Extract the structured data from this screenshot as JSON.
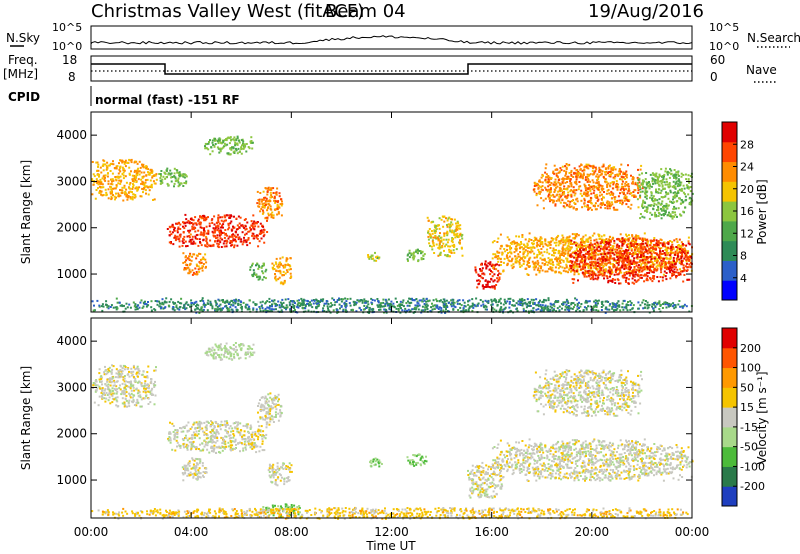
{
  "header": {
    "title": "Christmas Valley West (fitACF)",
    "beam": "Beam 04",
    "date": "19/Aug/2016"
  },
  "top_panels": {
    "nsky_label": "N.Sky",
    "nsearch_label": "N.Search",
    "nsky_ticks": [
      "10^5",
      "10^0"
    ],
    "nsearch_ticks": [
      "10^5",
      "10^0"
    ],
    "freq_label_1": "Freq.",
    "freq_label_2": "[MHz]",
    "freq_ticks": [
      "18",
      "8"
    ],
    "nave_label": "Nave",
    "nave_ticks": [
      "60",
      "0"
    ],
    "cpid_label": "CPID",
    "cpid_text": "normal (fast) -151 RF"
  },
  "x_axis": {
    "label": "Time UT",
    "ticks": [
      "00:00",
      "04:00",
      "08:00",
      "12:00",
      "16:00",
      "20:00",
      "00:00"
    ]
  },
  "power_panel": {
    "ylabel": "Slant Range [km]",
    "yticks": [
      "1000",
      "2000",
      "3000",
      "4000"
    ],
    "colorbar_label": "Power [dB]",
    "colorbar_ticks": [
      "28",
      "24",
      "20",
      "16",
      "12",
      "8",
      "4"
    ],
    "colors": [
      "#0000ff",
      "#2b5fc9",
      "#2e8b57",
      "#4ea84a",
      "#8cc63f",
      "#f5c400",
      "#ff8c00",
      "#ff4500",
      "#e00000"
    ]
  },
  "velocity_panel": {
    "ylabel": "Slant Range [km]",
    "yticks": [
      "1000",
      "2000",
      "3000",
      "4000"
    ],
    "colorbar_label": "Velocity [m s⁻¹]",
    "colorbar_ticks": [
      "200",
      "100",
      "50",
      "15",
      "-15",
      "-50",
      "-100",
      "-200"
    ],
    "colors": [
      "#1f3fbf",
      "#2a7a4a",
      "#4cbb3a",
      "#a8d98a",
      "#c8c8c0",
      "#f5c400",
      "#ff9900",
      "#ff5500",
      "#e00000"
    ]
  },
  "chart_data": [
    {
      "type": "heatmap",
      "title": "Power",
      "xlabel": "Time UT",
      "ylabel": "Slant Range [km]",
      "xlim": [
        0,
        24
      ],
      "ylim": [
        180,
        4500
      ],
      "zlabel": "Power [dB]",
      "zlim": [
        0,
        30
      ],
      "regions": [
        {
          "t0": 0.0,
          "t1": 2.6,
          "r0": 2600,
          "r1": 3500,
          "z": 20
        },
        {
          "t0": 2.6,
          "t1": 3.8,
          "r0": 2900,
          "r1": 3300,
          "z": 14
        },
        {
          "t0": 3.0,
          "t1": 7.0,
          "r0": 1600,
          "r1": 2300,
          "z": 26
        },
        {
          "t0": 3.6,
          "t1": 4.6,
          "r0": 1000,
          "r1": 1500,
          "z": 22
        },
        {
          "t0": 4.5,
          "t1": 6.5,
          "r0": 3600,
          "r1": 4000,
          "z": 14
        },
        {
          "t0": 6.3,
          "t1": 7.0,
          "r0": 900,
          "r1": 1300,
          "z": 12
        },
        {
          "t0": 6.6,
          "t1": 7.6,
          "r0": 2200,
          "r1": 2900,
          "z": 22
        },
        {
          "t0": 7.2,
          "t1": 8.0,
          "r0": 800,
          "r1": 1400,
          "z": 20
        },
        {
          "t0": 11.0,
          "t1": 11.6,
          "r0": 1300,
          "r1": 1500,
          "z": 16
        },
        {
          "t0": 12.6,
          "t1": 13.4,
          "r0": 1300,
          "r1": 1600,
          "z": 14
        },
        {
          "t0": 13.4,
          "t1": 14.8,
          "r0": 1400,
          "r1": 2300,
          "z": 18
        },
        {
          "t0": 15.3,
          "t1": 16.3,
          "r0": 700,
          "r1": 1300,
          "z": 28
        },
        {
          "t0": 16.0,
          "t1": 24.0,
          "r0": 1000,
          "r1": 1900,
          "z": 20
        },
        {
          "t0": 17.6,
          "t1": 22.0,
          "r0": 2400,
          "r1": 3400,
          "z": 22
        },
        {
          "t0": 19.0,
          "t1": 24.0,
          "r0": 800,
          "r1": 1800,
          "z": 26
        },
        {
          "t0": 21.8,
          "t1": 24.0,
          "r0": 2200,
          "r1": 3300,
          "z": 14
        },
        {
          "t0": 0.0,
          "t1": 24.0,
          "r0": 180,
          "r1": 500,
          "z": 8
        }
      ]
    },
    {
      "type": "heatmap",
      "title": "Velocity",
      "xlabel": "Time UT",
      "ylabel": "Slant Range [km]",
      "xlim": [
        0,
        24
      ],
      "ylim": [
        180,
        4500
      ],
      "zlabel": "Velocity [m s⁻¹]",
      "zlim": [
        -200,
        200
      ],
      "regions": [
        {
          "t0": 0.0,
          "t1": 2.6,
          "r0": 2600,
          "r1": 3500,
          "z": 0
        },
        {
          "t0": 3.0,
          "t1": 7.0,
          "r0": 1600,
          "r1": 2300,
          "z": 0
        },
        {
          "t0": 3.6,
          "t1": 4.6,
          "r0": 1000,
          "r1": 1500,
          "z": 0
        },
        {
          "t0": 4.5,
          "t1": 6.5,
          "r0": 3600,
          "r1": 4000,
          "z": -30
        },
        {
          "t0": 6.6,
          "t1": 7.6,
          "r0": 2200,
          "r1": 2900,
          "z": 0
        },
        {
          "t0": 7.0,
          "t1": 8.0,
          "r0": 900,
          "r1": 1400,
          "z": 0
        },
        {
          "t0": 6.8,
          "t1": 8.4,
          "r0": 200,
          "r1": 500,
          "z": -70
        },
        {
          "t0": 11.0,
          "t1": 11.6,
          "r0": 1300,
          "r1": 1500,
          "z": -60
        },
        {
          "t0": 12.6,
          "t1": 13.4,
          "r0": 1300,
          "r1": 1600,
          "z": -60
        },
        {
          "t0": 15.0,
          "t1": 16.4,
          "r0": 600,
          "r1": 1400,
          "z": 0
        },
        {
          "t0": 16.0,
          "t1": 24.0,
          "r0": 1000,
          "r1": 1900,
          "z": 0
        },
        {
          "t0": 17.6,
          "t1": 22.0,
          "r0": 2400,
          "r1": 3400,
          "z": 0
        },
        {
          "t0": 0.0,
          "t1": 24.0,
          "r0": 180,
          "r1": 420,
          "z": 40
        }
      ]
    }
  ]
}
